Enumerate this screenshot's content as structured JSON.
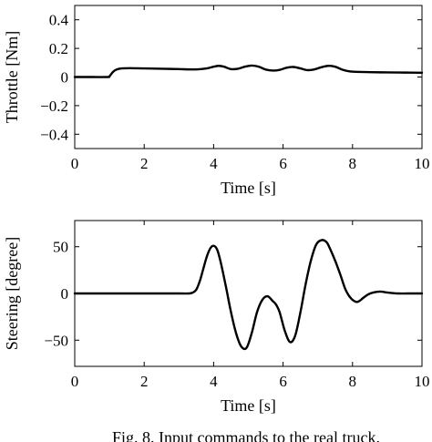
{
  "chart_data": [
    {
      "type": "line",
      "title": "",
      "xlabel": "Time [s]",
      "ylabel": "Throttle [Nm]",
      "xlim": [
        0,
        10
      ],
      "ylim": [
        -0.5,
        0.5
      ],
      "xticks": [
        0,
        2,
        4,
        6,
        8,
        10
      ],
      "yticks": [
        -0.4,
        -0.2,
        0,
        0.2,
        0.4
      ],
      "xtick_labels": [
        "0",
        "2",
        "4",
        "6",
        "8",
        "10"
      ],
      "ytick_labels": [
        "−0.4",
        "−0.2",
        "0",
        "0.2",
        "0.4"
      ],
      "grid": false,
      "series": [
        {
          "color": "#000000",
          "x": [
            0,
            0.5,
            0.95,
            1.0,
            1.1,
            1.2,
            1.35,
            1.6,
            2.0,
            2.5,
            3.0,
            3.5,
            3.8,
            4.0,
            4.15,
            4.3,
            4.5,
            4.7,
            4.9,
            5.1,
            5.3,
            5.5,
            5.7,
            5.9,
            6.1,
            6.3,
            6.5,
            6.7,
            6.9,
            7.1,
            7.3,
            7.5,
            7.7,
            7.9,
            8.1,
            8.5,
            9.0,
            9.5,
            10.0
          ],
          "y": [
            0,
            0,
            0,
            0.005,
            0.035,
            0.052,
            0.06,
            0.062,
            0.06,
            0.058,
            0.055,
            0.053,
            0.06,
            0.072,
            0.078,
            0.072,
            0.055,
            0.058,
            0.072,
            0.08,
            0.072,
            0.052,
            0.045,
            0.05,
            0.065,
            0.07,
            0.06,
            0.048,
            0.053,
            0.068,
            0.078,
            0.072,
            0.052,
            0.04,
            0.036,
            0.034,
            0.032,
            0.031,
            0.03
          ]
        }
      ]
    },
    {
      "type": "line",
      "title": "",
      "xlabel": "Time [s]",
      "ylabel": "Steering [degree]",
      "xlim": [
        0,
        10
      ],
      "ylim": [
        -78,
        78
      ],
      "xticks": [
        0,
        2,
        4,
        6,
        8,
        10
      ],
      "yticks": [
        -50,
        0,
        50
      ],
      "xtick_labels": [
        "0",
        "2",
        "4",
        "6",
        "8",
        "10"
      ],
      "ytick_labels": [
        "−50",
        "0",
        "50"
      ],
      "grid": false,
      "series": [
        {
          "color": "#000000",
          "x": [
            0,
            1,
            2,
            3,
            3.3,
            3.4,
            3.5,
            3.6,
            3.7,
            3.8,
            3.9,
            4.0,
            4.1,
            4.2,
            4.35,
            4.5,
            4.65,
            4.8,
            4.95,
            5.1,
            5.25,
            5.4,
            5.55,
            5.7,
            5.8,
            5.9,
            6.05,
            6.2,
            6.35,
            6.5,
            6.65,
            6.8,
            6.95,
            7.1,
            7.25,
            7.35,
            7.5,
            7.65,
            7.8,
            7.95,
            8.1,
            8.2,
            8.3,
            8.45,
            8.6,
            8.8,
            9.0,
            9.3,
            9.6,
            10.0
          ],
          "y": [
            0,
            0,
            0,
            0,
            0,
            1,
            4,
            13,
            26,
            39,
            48,
            51,
            47,
            34,
            8,
            -20,
            -43,
            -57,
            -58,
            -42,
            -20,
            -7,
            -3,
            -8,
            -12,
            -20,
            -40,
            -52,
            -45,
            -20,
            10,
            35,
            52,
            57,
            55,
            48,
            35,
            20,
            4,
            -5,
            -9,
            -8,
            -5,
            -1,
            1,
            2,
            1,
            0,
            0,
            0
          ]
        }
      ]
    }
  ],
  "caption": "Fig. 8. Input commands to the real truck."
}
